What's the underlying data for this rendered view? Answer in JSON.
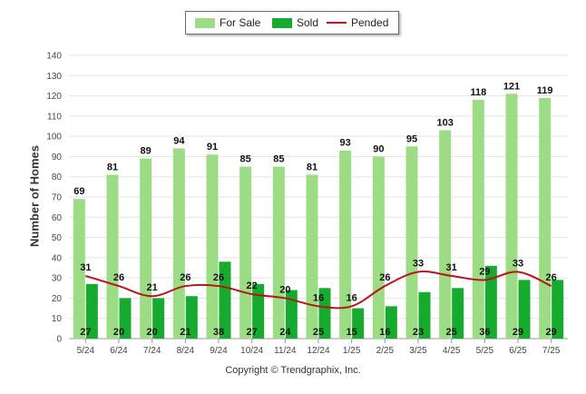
{
  "legend": {
    "for_sale": "For Sale",
    "sold": "Sold",
    "pended": "Pended"
  },
  "footer": {
    "copyright": "Copyright © Trendgraphix, Inc."
  },
  "colors": {
    "for_sale": "#9cdc84",
    "sold": "#16ab2e",
    "pended": "#b8141a",
    "grid": "#e3e3e3",
    "axis": "#999999"
  },
  "chart_data": {
    "type": "bar",
    "title": "",
    "xlabel": "",
    "ylabel": "Number of Homes",
    "ylim": [
      0,
      140
    ],
    "yticks": [
      0,
      10,
      20,
      30,
      40,
      50,
      60,
      70,
      80,
      90,
      100,
      110,
      120,
      130,
      140
    ],
    "grid": true,
    "legend_position": "top-center",
    "categories": [
      "5/24",
      "6/24",
      "7/24",
      "8/24",
      "9/24",
      "10/24",
      "11/24",
      "12/24",
      "1/25",
      "2/25",
      "3/25",
      "4/25",
      "5/25",
      "6/25",
      "7/25"
    ],
    "series": [
      {
        "name": "For Sale",
        "kind": "bar",
        "values": [
          69,
          81,
          89,
          94,
          91,
          85,
          85,
          81,
          93,
          90,
          95,
          103,
          118,
          121,
          119
        ]
      },
      {
        "name": "Sold",
        "kind": "bar",
        "values": [
          27,
          20,
          20,
          21,
          38,
          27,
          24,
          25,
          15,
          16,
          23,
          25,
          36,
          29,
          29
        ]
      },
      {
        "name": "Pended",
        "kind": "line",
        "values": [
          31,
          26,
          21,
          26,
          26,
          22,
          20,
          16,
          16,
          26,
          33,
          31,
          29,
          33,
          26
        ]
      }
    ]
  }
}
